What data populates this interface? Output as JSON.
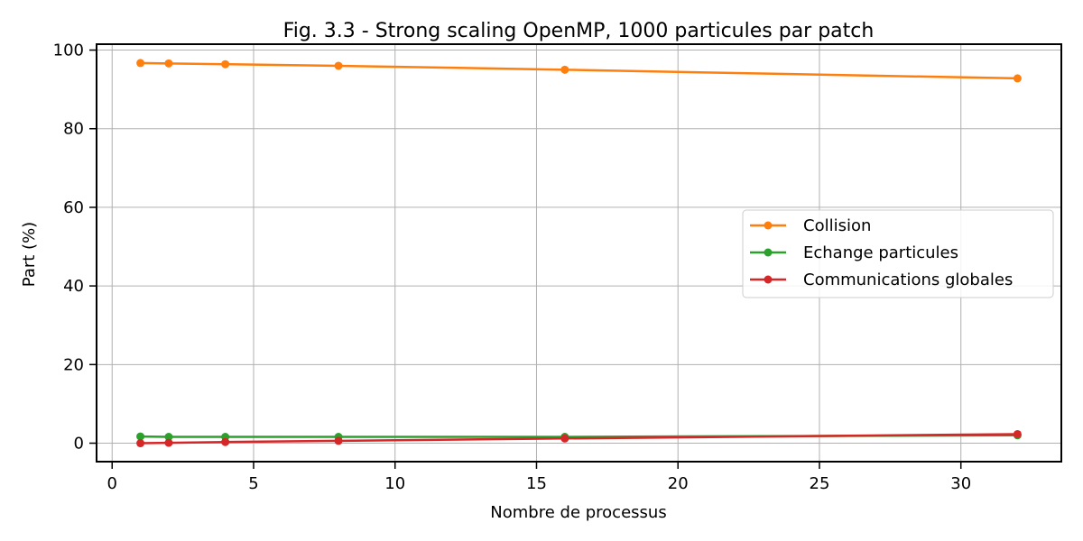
{
  "chart_data": {
    "type": "line",
    "title": "Fig. 3.3 - Strong scaling OpenMP, 1000 particules par patch",
    "xlabel": "Nombre de processus",
    "ylabel": "Part (%)",
    "xlim": [
      -0.55,
      33.55
    ],
    "ylim": [
      -4.7,
      101.5
    ],
    "xticks": [
      0,
      5,
      10,
      15,
      20,
      25,
      30
    ],
    "yticks": [
      0,
      20,
      40,
      60,
      80,
      100
    ],
    "grid": true,
    "legend_position": "center-right",
    "x": [
      1,
      2,
      4,
      8,
      16,
      32
    ],
    "series": [
      {
        "name": "Collision",
        "color": "#ff7f0e",
        "values": [
          96.7,
          96.6,
          96.4,
          96.0,
          95.0,
          92.8
        ]
      },
      {
        "name": "Echange particules",
        "color": "#2ca02c",
        "values": [
          1.7,
          1.6,
          1.6,
          1.6,
          1.6,
          2.0
        ]
      },
      {
        "name": "Communications globales",
        "color": "#d62728",
        "values": [
          0.0,
          0.1,
          0.3,
          0.6,
          1.2,
          2.3
        ]
      }
    ]
  }
}
